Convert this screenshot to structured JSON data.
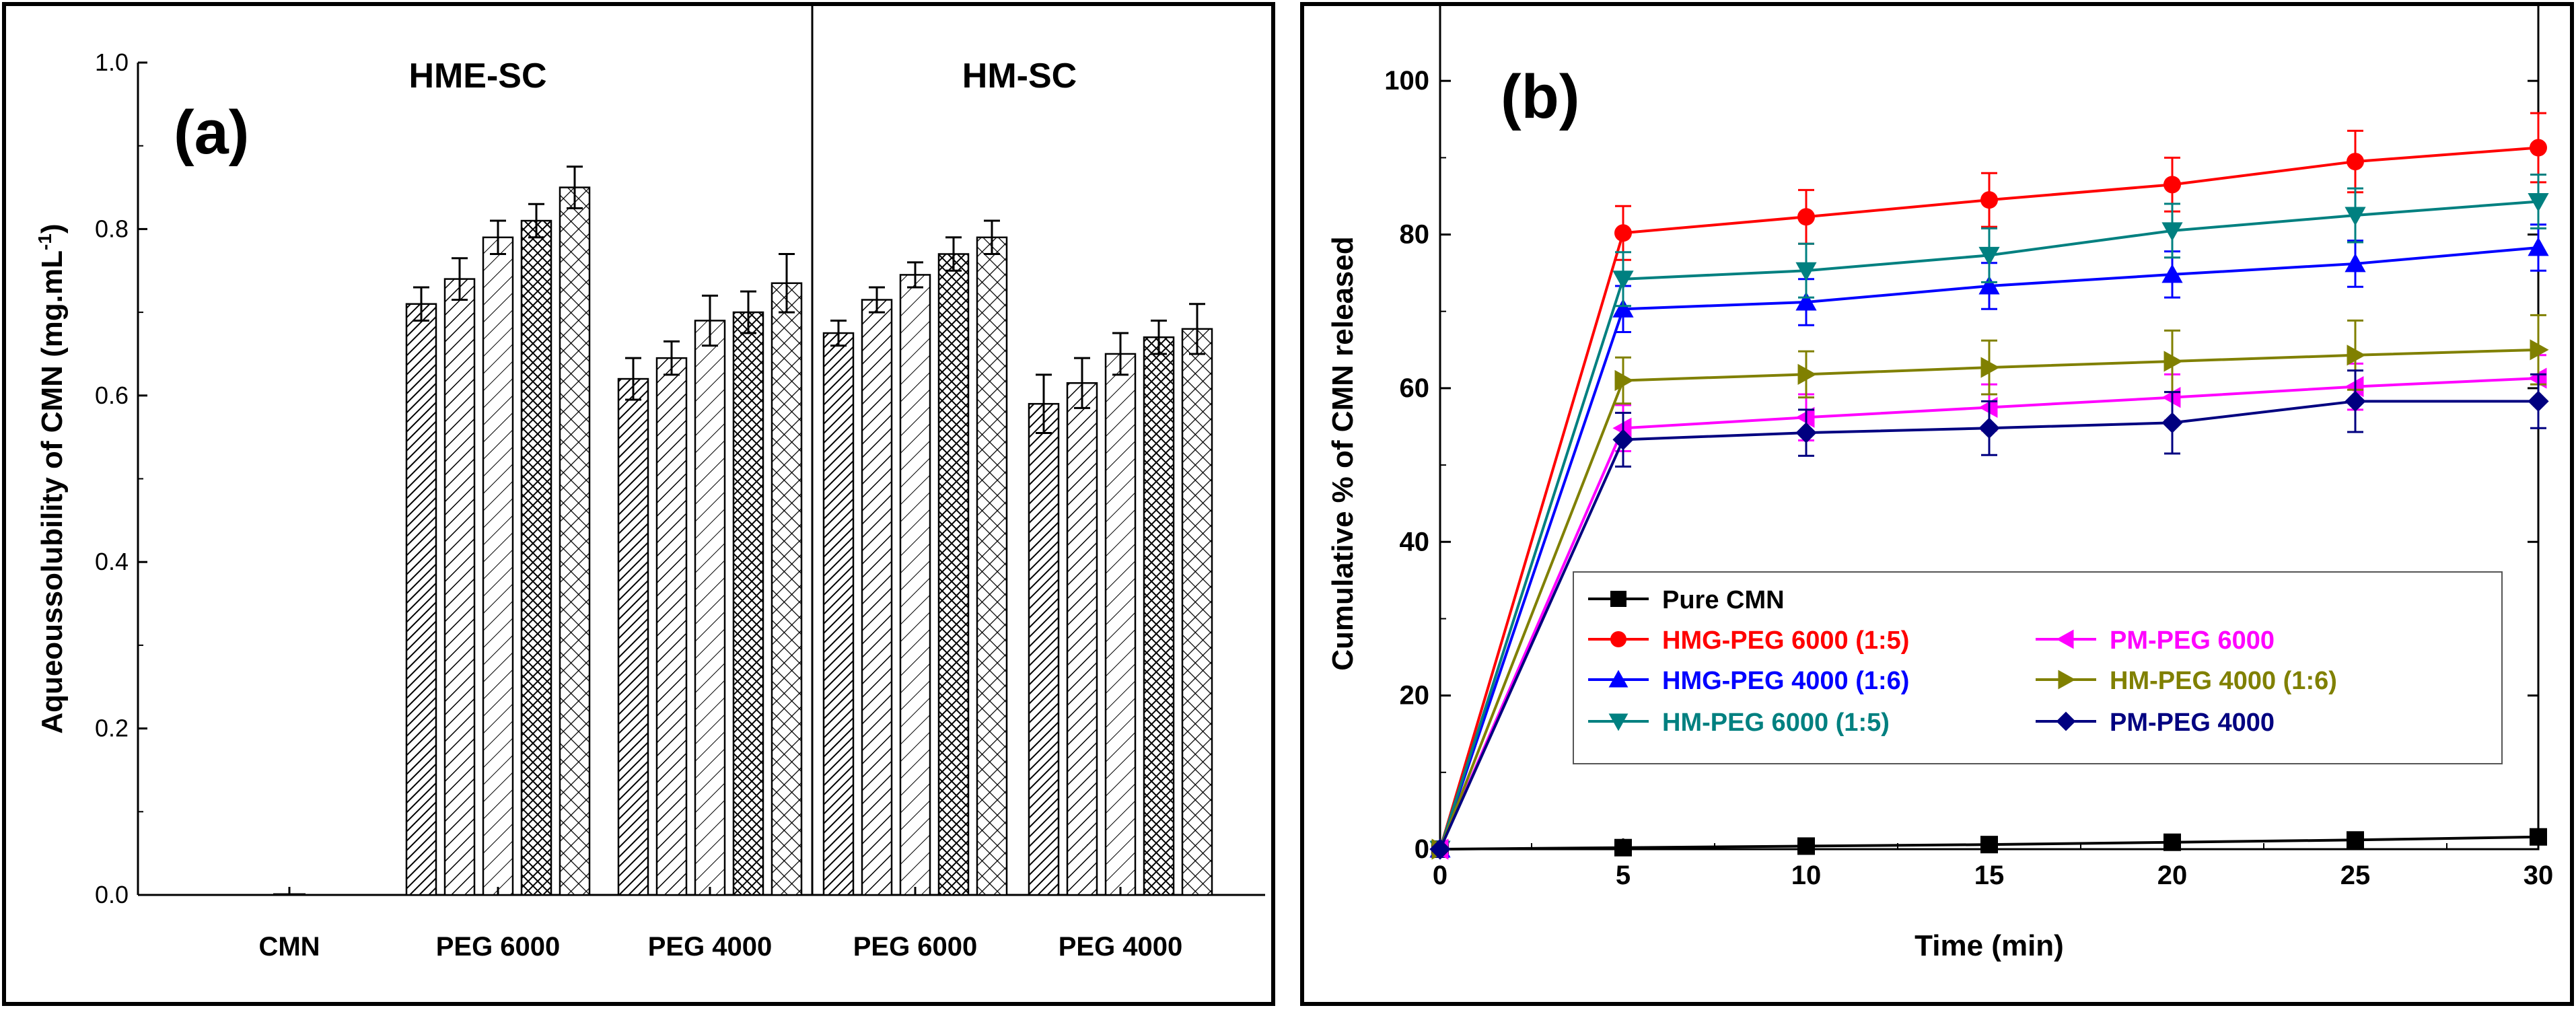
{
  "figure": {
    "panels": [
      "chart_a",
      "chart_b"
    ]
  },
  "colors": {
    "axis": "#000000",
    "pure_cmn": "#000000",
    "hmg_peg6000": "#ff0000",
    "hmg_peg4000": "#0000ff",
    "hm_peg6000": "#008080",
    "pm_peg6000": "#ff00ff",
    "hm_peg4000": "#808000",
    "pm_peg4000": "#000080"
  },
  "chart_data": [
    {
      "id": "chart_a",
      "type": "bar",
      "panel_label": "(a)",
      "ylabel": "Aqueoussolubility of CMN (mg.mL",
      "ylabel_superscript": "-1",
      "ylabel_close": ")",
      "ylim": [
        0,
        1.0
      ],
      "yticks": [
        0.0,
        0.2,
        0.4,
        0.6,
        0.8,
        1.0
      ],
      "ytick_labels": [
        "0.0",
        "0.2",
        "0.4",
        "0.6",
        "0.8",
        "1.0"
      ],
      "sections": [
        {
          "label": "HME-SC",
          "groups": [
            "CMN",
            "PEG 6000",
            "PEG 4000"
          ]
        },
        {
          "label": "HM-SC",
          "groups": [
            "PEG 6000",
            "PEG 4000"
          ]
        }
      ],
      "groups": [
        {
          "label": "CMN",
          "values": [
            0.002
          ],
          "errors": [
            0.002
          ]
        },
        {
          "label": "PEG 6000",
          "values": [
            0.71,
            0.74,
            0.79,
            0.81,
            0.85
          ],
          "errors": [
            0.02,
            0.025,
            0.02,
            0.02,
            0.025
          ]
        },
        {
          "label": "PEG 4000",
          "values": [
            0.62,
            0.645,
            0.69,
            0.7,
            0.735
          ],
          "errors": [
            0.025,
            0.02,
            0.03,
            0.025,
            0.035
          ]
        },
        {
          "label": "PEG 6000",
          "values": [
            0.675,
            0.715,
            0.745,
            0.77,
            0.79
          ],
          "errors": [
            0.015,
            0.015,
            0.015,
            0.02,
            0.02
          ]
        },
        {
          "label": "PEG 4000",
          "values": [
            0.59,
            0.615,
            0.65,
            0.67,
            0.68
          ],
          "errors": [
            0.035,
            0.03,
            0.025,
            0.02,
            0.03
          ]
        }
      ],
      "bar_patterns": [
        "hatch-dense-diag",
        "hatch-diag",
        "hatch-light-diag",
        "crosshatch-dense",
        "crosshatch"
      ]
    },
    {
      "id": "chart_b",
      "type": "line",
      "panel_label": "(b)",
      "xlabel": "Time (min)",
      "ylabel": "Cumulative % of CMN released",
      "xlim": [
        0,
        30
      ],
      "ylim": [
        0,
        110
      ],
      "xticks": [
        0,
        5,
        10,
        15,
        20,
        25,
        30
      ],
      "yticks": [
        0,
        20,
        40,
        60,
        80,
        100
      ],
      "x": [
        0,
        5,
        10,
        15,
        20,
        25,
        30
      ],
      "legend_position": "lower-center",
      "series": [
        {
          "name": "Pure CMN",
          "color": "#000000",
          "marker": "square",
          "values": [
            0,
            0.2,
            0.4,
            0.6,
            0.9,
            1.2,
            1.6
          ],
          "errors": [
            0,
            0,
            0,
            0,
            0,
            0,
            0
          ]
        },
        {
          "name": "HMG-PEG 6000 (1:5)",
          "color": "#ff0000",
          "marker": "circle",
          "values": [
            0,
            80.2,
            82.3,
            84.5,
            86.5,
            89.5,
            91.3
          ],
          "errors": [
            0,
            3.5,
            3.5,
            3.5,
            3.5,
            4.0,
            4.5
          ]
        },
        {
          "name": "HMG-PEG 4000 (1:6)",
          "color": "#0000ff",
          "marker": "triangle-up",
          "values": [
            0,
            70.3,
            71.2,
            73.3,
            74.8,
            76.2,
            78.3
          ],
          "errors": [
            0,
            3.0,
            3.0,
            3.0,
            3.0,
            3.0,
            3.0
          ]
        },
        {
          "name": "HM-PEG 6000 (1:5)",
          "color": "#008080",
          "marker": "triangle-down",
          "values": [
            0,
            74.2,
            75.3,
            77.3,
            80.5,
            82.5,
            84.3
          ],
          "errors": [
            0,
            3.5,
            3.5,
            3.5,
            3.5,
            3.5,
            3.5
          ]
        },
        {
          "name": "PM-PEG 6000",
          "color": "#ff00ff",
          "marker": "triangle-left",
          "values": [
            0,
            54.8,
            56.2,
            57.5,
            58.8,
            60.2,
            61.3
          ],
          "errors": [
            0,
            3.0,
            3.0,
            3.0,
            3.0,
            3.0,
            3.0
          ]
        },
        {
          "name": "HM-PEG 4000 (1:6)",
          "color": "#808000",
          "marker": "triangle-right",
          "values": [
            0,
            61.0,
            61.8,
            62.7,
            63.5,
            64.3,
            65.0
          ],
          "errors": [
            0,
            3.0,
            3.0,
            3.5,
            4.0,
            4.5,
            4.5
          ]
        },
        {
          "name": "PM-PEG 4000",
          "color": "#000080",
          "marker": "diamond",
          "values": [
            0,
            53.3,
            54.2,
            54.8,
            55.5,
            58.3,
            58.3
          ],
          "errors": [
            0,
            3.5,
            3.0,
            3.5,
            4.0,
            4.0,
            3.5
          ]
        }
      ],
      "legend_order": [
        [
          "Pure CMN"
        ],
        [
          "HMG-PEG 6000 (1:5)",
          "PM-PEG 6000"
        ],
        [
          "HMG-PEG 4000 (1:6)",
          "HM-PEG 4000 (1:6)"
        ],
        [
          "HM-PEG 6000 (1:5)",
          "PM-PEG 4000"
        ]
      ]
    }
  ]
}
